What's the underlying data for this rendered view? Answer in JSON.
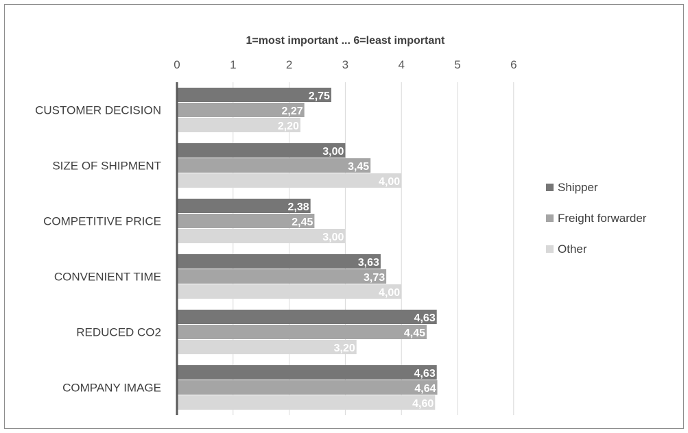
{
  "chart_data": {
    "type": "bar",
    "orientation": "horizontal",
    "title": "1=most important ... 6=least important",
    "xlim": [
      0,
      6
    ],
    "xticks": [
      0,
      1,
      2,
      3,
      4,
      5,
      6
    ],
    "grid": true,
    "legend_position": "right",
    "categories": [
      "CUSTOMER DECISION",
      "SIZE OF SHIPMENT",
      "COMPETITIVE PRICE",
      "CONVENIENT TIME",
      "REDUCED CO2",
      "COMPANY IMAGE"
    ],
    "series": [
      {
        "name": "Shipper",
        "color": "#767676",
        "values": [
          2.75,
          3.0,
          2.38,
          3.63,
          4.63,
          4.63
        ],
        "labels": [
          "2,75",
          "3,00",
          "2,38",
          "3,63",
          "4,63",
          "4,63"
        ]
      },
      {
        "name": "Freight forwarder",
        "color": "#a5a5a5",
        "values": [
          2.27,
          3.45,
          2.45,
          3.73,
          4.45,
          4.64
        ],
        "labels": [
          "2,27",
          "3,45",
          "2,45",
          "3,73",
          "4,45",
          "4,64"
        ]
      },
      {
        "name": "Other",
        "color": "#d8d8d8",
        "values": [
          2.2,
          4.0,
          3.0,
          4.0,
          3.2,
          4.6
        ],
        "labels": [
          "2,20",
          "4,00",
          "3,00",
          "4,00",
          "3,20",
          "4,60"
        ]
      }
    ]
  }
}
